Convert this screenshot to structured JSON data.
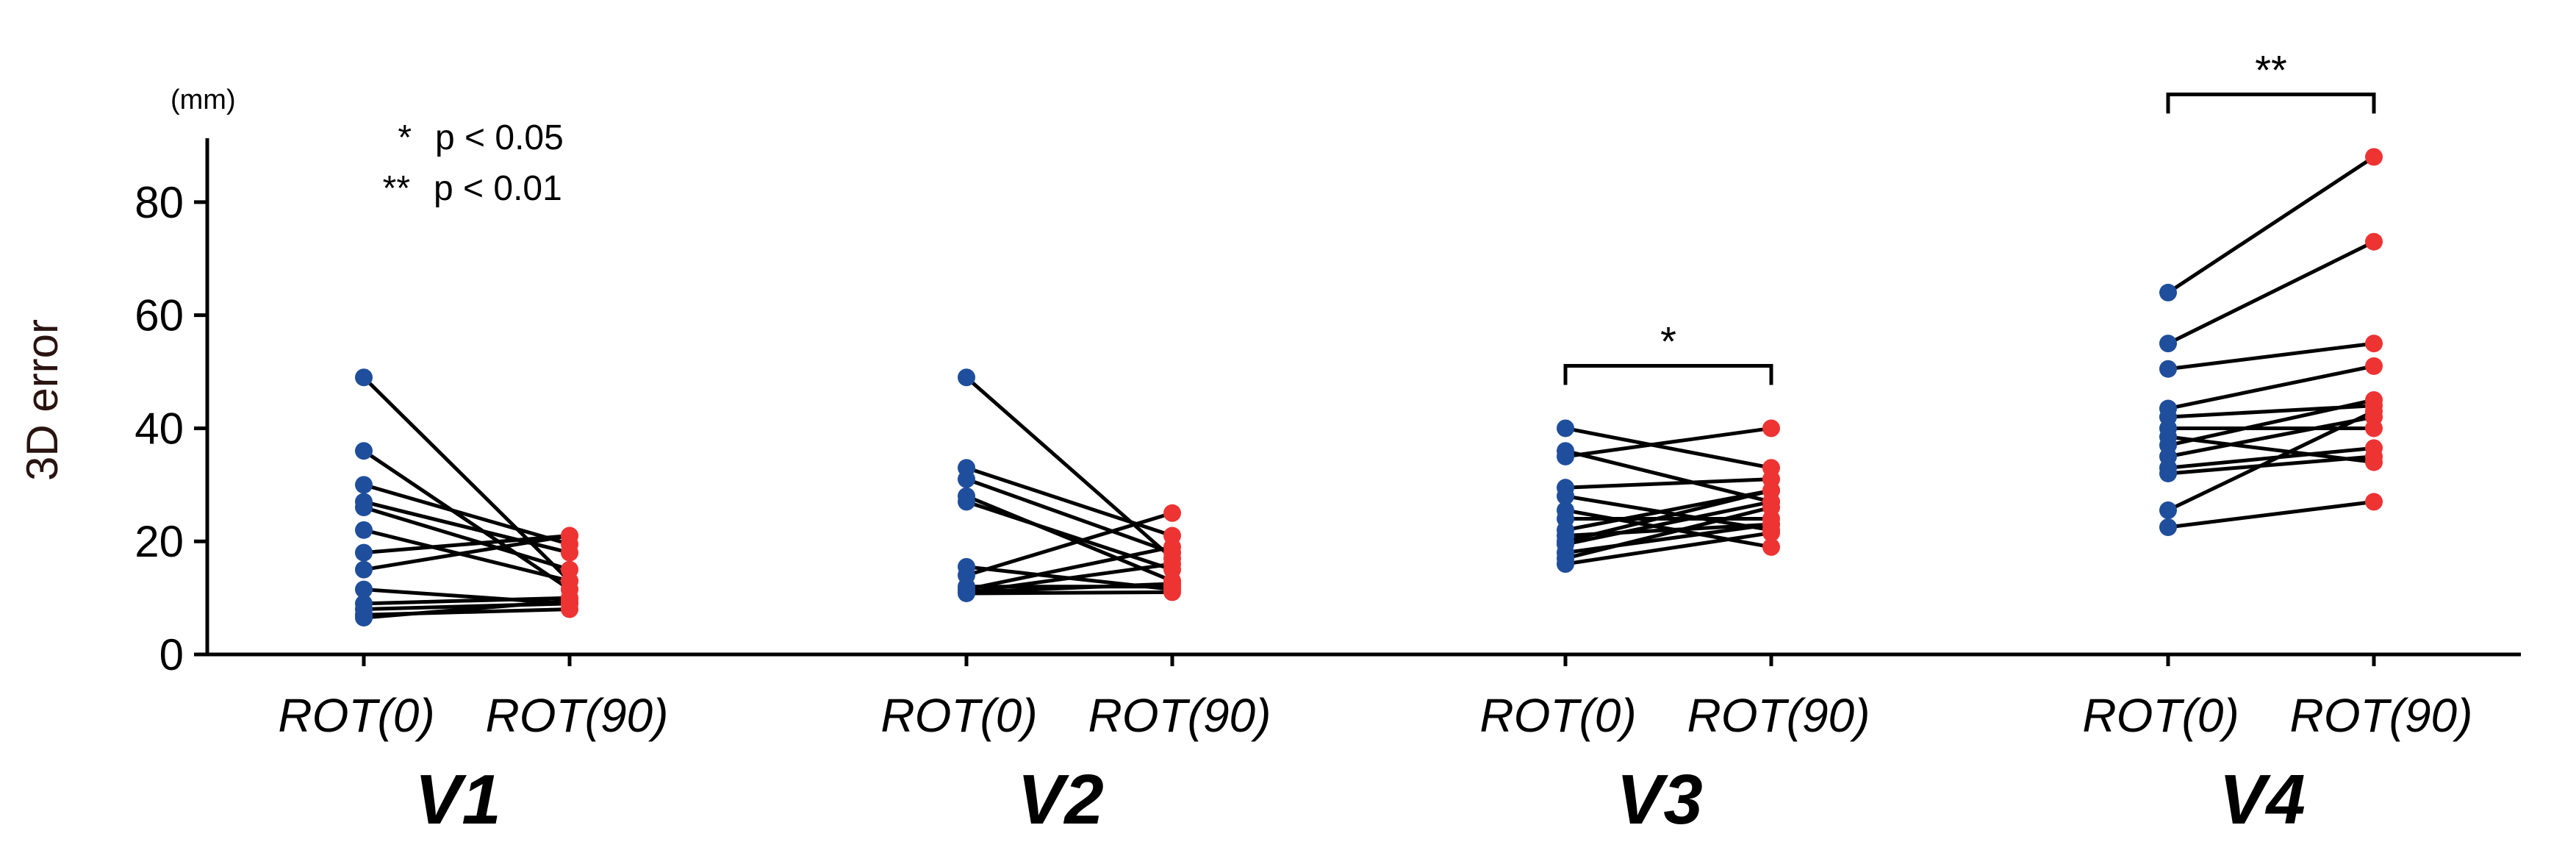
{
  "chart_data": {
    "type": "paired-scatter",
    "title": "",
    "ylabel": "3D error",
    "y_unit": "(mm)",
    "ylim": [
      0,
      90
    ],
    "yticks": [
      0,
      20,
      40,
      60,
      80
    ],
    "conditions": [
      "ROT(0)",
      "ROT(90)"
    ],
    "series_colors": {
      "ROT(0)": "#1f4e9c",
      "ROT(90)": "#ee3333"
    },
    "legend": [
      {
        "symbol": "*",
        "text": "p < 0.05"
      },
      {
        "symbol": "**",
        "text": "p < 0.01"
      }
    ],
    "groups": [
      {
        "name": "V1",
        "significance": "",
        "pairs": [
          [
            49.0,
            13.0
          ],
          [
            36.0,
            11.5
          ],
          [
            30.0,
            19.5
          ],
          [
            27.0,
            18.0
          ],
          [
            26.0,
            15.0
          ],
          [
            22.0,
            13.0
          ],
          [
            18.0,
            21.0
          ],
          [
            15.0,
            21.0
          ],
          [
            11.5,
            9.0
          ],
          [
            9.0,
            10.0
          ],
          [
            8.0,
            9.0
          ],
          [
            7.0,
            8.0
          ],
          [
            6.5,
            9.5
          ]
        ]
      },
      {
        "name": "V2",
        "significance": "",
        "pairs": [
          [
            49.0,
            17.0
          ],
          [
            33.0,
            21.0
          ],
          [
            31.0,
            18.0
          ],
          [
            28.0,
            13.0
          ],
          [
            27.0,
            15.0
          ],
          [
            15.5,
            11.5
          ],
          [
            14.0,
            25.0
          ],
          [
            12.0,
            12.0
          ],
          [
            11.5,
            19.0
          ],
          [
            11.0,
            12.5
          ],
          [
            11.0,
            16.0
          ],
          [
            10.8,
            11.0
          ]
        ]
      },
      {
        "name": "V3",
        "significance": "*",
        "pairs": [
          [
            40.0,
            33.0
          ],
          [
            36.0,
            27.0
          ],
          [
            35.0,
            40.0
          ],
          [
            29.5,
            31.0
          ],
          [
            28.0,
            22.0
          ],
          [
            25.5,
            19.0
          ],
          [
            24.0,
            24.0
          ],
          [
            22.0,
            29.0
          ],
          [
            21.0,
            23.0
          ],
          [
            20.0,
            29.0
          ],
          [
            19.5,
            27.0
          ],
          [
            18.0,
            23.0
          ],
          [
            17.0,
            26.0
          ],
          [
            16.0,
            21.5
          ]
        ]
      },
      {
        "name": "V4",
        "significance": "**",
        "pairs": [
          [
            64.0,
            88.0
          ],
          [
            55.0,
            73.0
          ],
          [
            50.5,
            55.0
          ],
          [
            43.5,
            51.0
          ],
          [
            42.0,
            44.0
          ],
          [
            40.0,
            40.0
          ],
          [
            38.5,
            34.0
          ],
          [
            37.0,
            45.0
          ],
          [
            35.0,
            42.0
          ],
          [
            33.0,
            36.5
          ],
          [
            32.0,
            35.0
          ],
          [
            25.5,
            43.0
          ],
          [
            22.5,
            27.0
          ]
        ]
      }
    ]
  }
}
